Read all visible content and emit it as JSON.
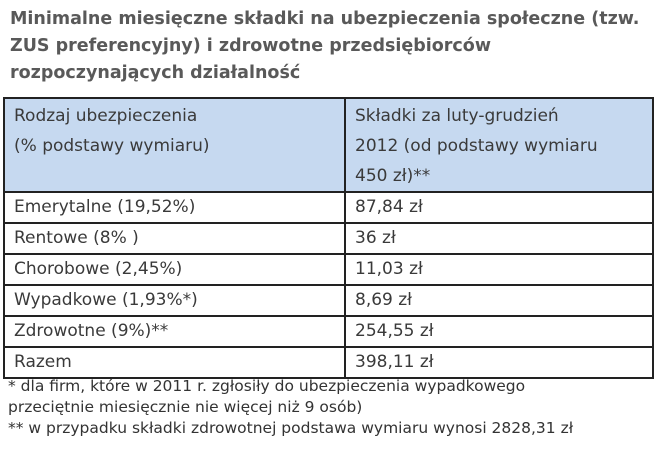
{
  "title": "Minimalne miesięczne składki na ubezpieczenia społeczne (tzw. ZUS preferencyjny) i zdrowotne przedsiębiorców rozpoczynających działalność",
  "header": {
    "col1_line1": "Rodzaj ubezpieczenia",
    "col1_line2": "(% podstawy wymiaru)",
    "col2_line1": "Składki za luty-grudzień",
    "col2_line2": "2012 (od podstawy wymiaru",
    "col2_line3": "450 zł)**"
  },
  "rows": [
    {
      "type": "Emerytalne (19,52%)",
      "amount": "87,84 zł"
    },
    {
      "type": "Rentowe (8% )",
      "amount": "36 zł"
    },
    {
      "type": "Chorobowe (2,45%)",
      "amount": "11,03 zł"
    },
    {
      "type": "Wypadkowe (1,93%*)",
      "amount": "8,69 zł"
    },
    {
      "type": "Zdrowotne (9%)**",
      "amount": "254,55 zł"
    },
    {
      "type": "Razem",
      "amount": "398,11 zł"
    }
  ],
  "footnotes": [
    "* dla firm, które w 2011 r. zgłosiły do ubezpieczenia wypadkowego",
    "przeciętnie miesięcznie nie więcej niż 9 osób)",
    "** w przypadku składki zdrowotnej podstawa wymiaru wynosi 2828,31 zł"
  ]
}
